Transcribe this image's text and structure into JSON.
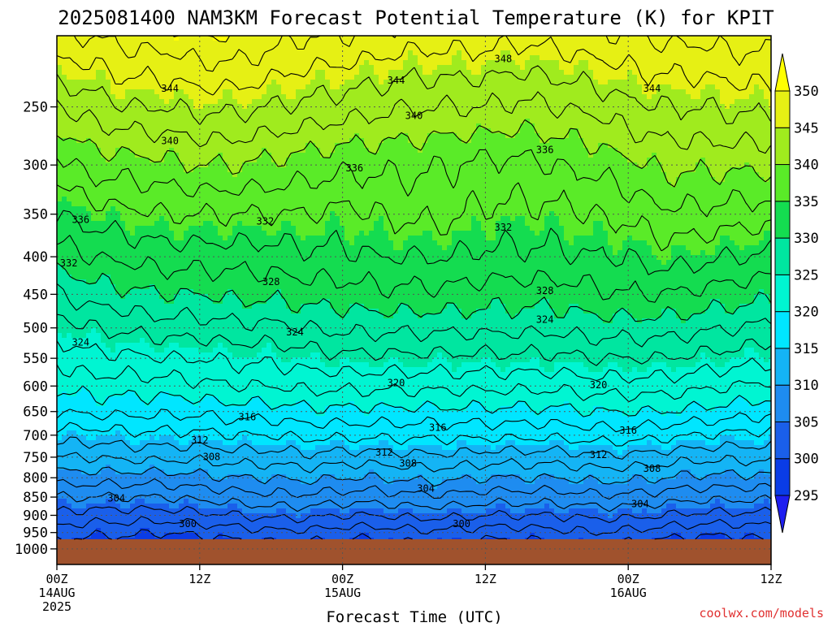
{
  "chart_data": {
    "type": "contour-filled",
    "title": "2025081400 NAM3KM Forecast Potential Temperature (K) for KPIT",
    "xlabel": "Forecast Time (UTC)",
    "ylabel": "",
    "credit": "coolwx.com/models",
    "y_axis": {
      "scale": "log-pressure",
      "range": [
        1050,
        200
      ],
      "ticks": [
        250,
        300,
        350,
        400,
        450,
        500,
        550,
        600,
        650,
        700,
        750,
        800,
        850,
        900,
        950,
        1000
      ]
    },
    "x_axis": {
      "range_hours": [
        0,
        60
      ],
      "ticks": [
        {
          "h": 0,
          "label": "00Z",
          "date": "14AUG",
          "year": "2025"
        },
        {
          "h": 12,
          "label": "12Z",
          "date": "",
          "year": ""
        },
        {
          "h": 24,
          "label": "00Z",
          "date": "15AUG",
          "year": ""
        },
        {
          "h": 36,
          "label": "12Z",
          "date": "",
          "year": ""
        },
        {
          "h": 48,
          "label": "00Z",
          "date": "16AUG",
          "year": ""
        },
        {
          "h": 60,
          "label": "12Z",
          "date": "",
          "year": ""
        }
      ]
    },
    "grid": true,
    "ground_pressure": 970,
    "ground_color": "#a0522d",
    "fill_levels": [
      295,
      300,
      305,
      310,
      315,
      320,
      325,
      330,
      335,
      340,
      345,
      350
    ],
    "fill_colors": [
      "#1e1ef0",
      "#0a3ce6",
      "#1a5fea",
      "#1e8cf0",
      "#14b4f5",
      "#00e6ff",
      "#00f5d2",
      "#00e6a0",
      "#14dc50",
      "#5aeb28",
      "#a0eb1e",
      "#e6f014",
      "#ffff00"
    ],
    "colorbar": {
      "labels": [
        "295",
        "300",
        "305",
        "310",
        "315",
        "320",
        "325",
        "330",
        "335",
        "340",
        "345",
        "350"
      ],
      "extend": "both"
    },
    "profile_hours": [
      0,
      3,
      6,
      9,
      12,
      15,
      18,
      21,
      24,
      27,
      30,
      33,
      36,
      39,
      42,
      45,
      48,
      51,
      54,
      57,
      60
    ],
    "pressure_levels": [
      1000,
      950,
      900,
      850,
      800,
      750,
      700,
      650,
      600,
      550,
      500,
      450,
      400,
      350,
      300,
      250,
      200
    ],
    "theta_profiles": [
      [
        298.5,
        301,
        303.5,
        306,
        309,
        312,
        315,
        318,
        320.5,
        322.5,
        325,
        328,
        331,
        334,
        337,
        342,
        348
      ],
      [
        298,
        300.5,
        303,
        306,
        309,
        312,
        315,
        318.5,
        321,
        323.5,
        326,
        329,
        332,
        335,
        339,
        343,
        348
      ],
      [
        298,
        300.5,
        303,
        306,
        309,
        312.5,
        315.5,
        318.5,
        321,
        323.5,
        326.5,
        329.5,
        332.5,
        335.5,
        339,
        344,
        349
      ],
      [
        297.5,
        300,
        303,
        306,
        309,
        312.5,
        315.5,
        318.5,
        321,
        324,
        327,
        330,
        333,
        336,
        339.5,
        344,
        349
      ],
      [
        298,
        300.5,
        303.5,
        306.5,
        309.5,
        312.5,
        315.5,
        318.5,
        321.5,
        324,
        327,
        330,
        333,
        336,
        340,
        344.5,
        350
      ],
      [
        298.5,
        301,
        304,
        307,
        310,
        313,
        316,
        319,
        322,
        324.5,
        327.5,
        330.5,
        333,
        336,
        340,
        344.5,
        350
      ],
      [
        299,
        301.5,
        304.5,
        307.5,
        310,
        313,
        316,
        319,
        322,
        324.5,
        327.5,
        330.5,
        333,
        336,
        339.5,
        344,
        349
      ],
      [
        299,
        301.5,
        304.5,
        307.5,
        310.5,
        313.5,
        316.5,
        319.5,
        322.5,
        325,
        328,
        331,
        333.5,
        336,
        339,
        343.5,
        348
      ],
      [
        298.5,
        301,
        304,
        307,
        310,
        313,
        316.5,
        319.5,
        322.5,
        325.5,
        328.5,
        331,
        333.5,
        335.5,
        338.5,
        343,
        348
      ],
      [
        298.5,
        301,
        304,
        307,
        310,
        313,
        316.5,
        319.5,
        322.5,
        325.5,
        328.5,
        331.5,
        334,
        336,
        338.5,
        342.5,
        347.5
      ],
      [
        299,
        301.5,
        304.5,
        307.5,
        310.5,
        313.5,
        316.5,
        319.5,
        322.5,
        325.5,
        328.5,
        331.5,
        334,
        336.5,
        338.5,
        342,
        347
      ],
      [
        299,
        301.5,
        304.5,
        307.5,
        310.5,
        313.5,
        316.5,
        319.5,
        322.5,
        325.5,
        328.5,
        331.5,
        334,
        336.5,
        338,
        342,
        347
      ],
      [
        298.5,
        301,
        304,
        307,
        310,
        313,
        316.5,
        319.5,
        322.5,
        325.5,
        328.5,
        331,
        333.5,
        335.5,
        337.5,
        342,
        347
      ],
      [
        298.5,
        301,
        304,
        307,
        310,
        313,
        316.5,
        319.5,
        322.5,
        325.5,
        328.5,
        331,
        333.5,
        335.5,
        337.5,
        341.5,
        346.5
      ],
      [
        299,
        301.5,
        304,
        307,
        310,
        313,
        316.5,
        319.5,
        322.5,
        325.5,
        328.5,
        331,
        333.5,
        335.5,
        338,
        342,
        347
      ],
      [
        299.5,
        302,
        304.5,
        307.5,
        310.5,
        313.5,
        317,
        320,
        323,
        326,
        329,
        331.5,
        334,
        336,
        338.5,
        342.5,
        347.5
      ],
      [
        299,
        301.5,
        304.5,
        307.5,
        310.5,
        313.5,
        317,
        320,
        323,
        326,
        329,
        332,
        334,
        336.5,
        339.5,
        343.5,
        348
      ],
      [
        298.5,
        301,
        304,
        307,
        310,
        313,
        316.5,
        320,
        323,
        326,
        329,
        332,
        335,
        337.5,
        340.5,
        344,
        348.5
      ],
      [
        298,
        300.5,
        303.5,
        306.5,
        309.5,
        312.5,
        316,
        319.5,
        322.5,
        325.5,
        328.5,
        331.5,
        334.5,
        337.5,
        340.5,
        344,
        348.5
      ],
      [
        298,
        300.5,
        303.5,
        306.5,
        309.5,
        312.5,
        315.5,
        319,
        322,
        325,
        328,
        331,
        334,
        337,
        340.5,
        344.5,
        349
      ],
      [
        299,
        301,
        303.5,
        306.5,
        309.5,
        312.5,
        315.5,
        318.5,
        321.5,
        324.5,
        327.5,
        330.5,
        333.5,
        337,
        340.5,
        344.5,
        349
      ]
    ],
    "contour_levels": [
      298,
      300,
      302,
      304,
      306,
      308,
      310,
      312,
      314,
      316,
      318,
      320,
      322,
      324,
      326,
      328,
      330,
      332,
      334,
      336,
      338,
      340,
      342,
      344,
      346,
      348,
      350
    ],
    "contour_labels": [
      {
        "value": 348,
        "h": 37.5,
        "p": 215
      },
      {
        "value": 344,
        "h": 9.5,
        "p": 236
      },
      {
        "value": 344,
        "h": 28.5,
        "p": 230
      },
      {
        "value": 344,
        "h": 50,
        "p": 236
      },
      {
        "value": 340,
        "h": 9.5,
        "p": 278
      },
      {
        "value": 340,
        "h": 30,
        "p": 257
      },
      {
        "value": 336,
        "h": 2,
        "p": 356
      },
      {
        "value": 336,
        "h": 25,
        "p": 303
      },
      {
        "value": 336,
        "h": 41,
        "p": 286
      },
      {
        "value": 332,
        "h": 1,
        "p": 408
      },
      {
        "value": 332,
        "h": 17.5,
        "p": 358
      },
      {
        "value": 332,
        "h": 37.5,
        "p": 365
      },
      {
        "value": 328,
        "h": 18,
        "p": 433
      },
      {
        "value": 328,
        "h": 41,
        "p": 445
      },
      {
        "value": 324,
        "h": 2,
        "p": 523
      },
      {
        "value": 324,
        "h": 20,
        "p": 507
      },
      {
        "value": 324,
        "h": 41,
        "p": 487
      },
      {
        "value": 320,
        "h": 28.5,
        "p": 594
      },
      {
        "value": 320,
        "h": 45.5,
        "p": 598
      },
      {
        "value": 316,
        "h": 16,
        "p": 661
      },
      {
        "value": 316,
        "h": 32,
        "p": 684
      },
      {
        "value": 316,
        "h": 48,
        "p": 690
      },
      {
        "value": 312,
        "h": 12,
        "p": 711
      },
      {
        "value": 312,
        "h": 27.5,
        "p": 739
      },
      {
        "value": 312,
        "h": 45.5,
        "p": 744
      },
      {
        "value": 308,
        "h": 13,
        "p": 749
      },
      {
        "value": 308,
        "h": 29.5,
        "p": 765
      },
      {
        "value": 308,
        "h": 50,
        "p": 777
      },
      {
        "value": 304,
        "h": 5,
        "p": 853
      },
      {
        "value": 304,
        "h": 31,
        "p": 828
      },
      {
        "value": 304,
        "h": 49,
        "p": 869
      },
      {
        "value": 300,
        "h": 11,
        "p": 924
      },
      {
        "value": 300,
        "h": 34,
        "p": 925
      }
    ]
  }
}
